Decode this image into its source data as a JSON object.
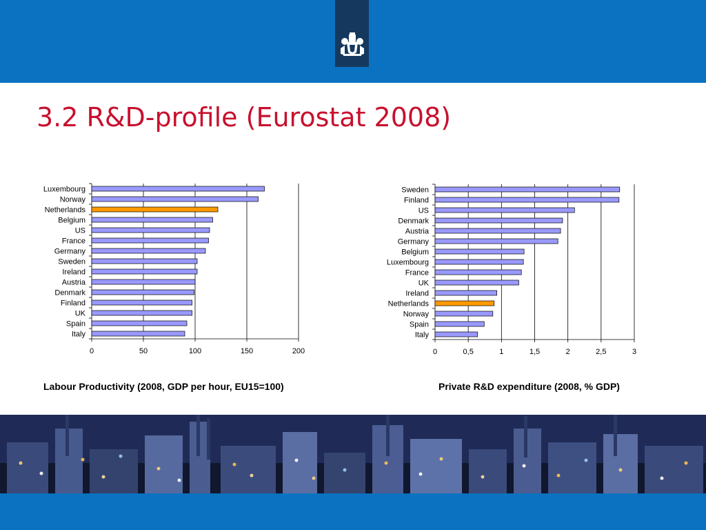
{
  "slide": {
    "title": "3.2 R&D-profile (Eurostat 2008)",
    "caption_left": "Labour Productivity (2008, GDP per hour, EU15=100)",
    "caption_right": "Private R&D expenditure (2008, % GDP)"
  },
  "colors": {
    "band": "#0a72c1",
    "logo_tab": "#15395e",
    "title": "#c8102e",
    "bar": "#9999ff",
    "highlight_bar": "#ff9900"
  },
  "icons": [
    "coat-of-arms-logo-icon",
    "industrial-night-skyline-image"
  ],
  "chart_data": [
    {
      "type": "bar",
      "orientation": "horizontal",
      "title": "Labour Productivity (2008, GDP per hour, EU15=100)",
      "categories": [
        "Luxembourg",
        "Norway",
        "Netherlands",
        "Belgium",
        "US",
        "France",
        "Germany",
        "Sweden",
        "Ireland",
        "Austria",
        "Denmark",
        "Finland",
        "UK",
        "Spain",
        "Italy"
      ],
      "values": [
        167,
        161,
        122,
        117,
        114,
        113,
        110,
        102,
        102,
        100,
        99,
        97,
        97,
        92,
        90
      ],
      "highlight": "Netherlands",
      "xlim": [
        0,
        200
      ],
      "xticks": [
        0,
        50,
        100,
        150,
        200
      ],
      "xtick_labels": [
        "0",
        "50",
        "100",
        "150",
        "200"
      ],
      "grid": "vertical",
      "legend": "none"
    },
    {
      "type": "bar",
      "orientation": "horizontal",
      "title": "Private R&D expenditure (2008, % GDP)",
      "categories": [
        "Sweden",
        "Finland",
        "US",
        "Denmark",
        "Austria",
        "Germany",
        "Belgium",
        "Luxembourg",
        "France",
        "UK",
        "Ireland",
        "Netherlands",
        "Norway",
        "Spain",
        "Italy"
      ],
      "values": [
        2.78,
        2.77,
        2.1,
        1.92,
        1.89,
        1.85,
        1.34,
        1.33,
        1.3,
        1.26,
        0.93,
        0.89,
        0.87,
        0.74,
        0.64
      ],
      "highlight": "Netherlands",
      "xlim": [
        0,
        3
      ],
      "xticks": [
        0,
        0.5,
        1,
        1.5,
        2,
        2.5,
        3
      ],
      "xtick_labels": [
        "0",
        "0,5",
        "1",
        "1,5",
        "2",
        "2,5",
        "3"
      ],
      "grid": "vertical",
      "legend": "none"
    }
  ]
}
